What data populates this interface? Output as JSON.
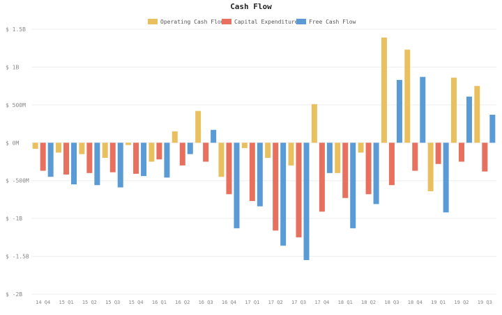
{
  "chart_data": {
    "type": "bar",
    "title": "Cash Flow",
    "xlabel": "",
    "ylabel": "",
    "ylim": [
      -2000,
      1500
    ],
    "y_ticks": [
      {
        "value": 1500,
        "label": "$ 1.5B"
      },
      {
        "value": 1000,
        "label": "$ 1B"
      },
      {
        "value": 500,
        "label": "$ 500M"
      },
      {
        "value": 0,
        "label": "$ 0M"
      },
      {
        "value": -500,
        "label": "$ -500M"
      },
      {
        "value": -1000,
        "label": "$ -1B"
      },
      {
        "value": -1500,
        "label": "$ -1.5B"
      },
      {
        "value": -2000,
        "label": "$ -2B"
      }
    ],
    "grid": true,
    "legend_position": "top-center",
    "categories": [
      "14 Q4",
      "15 Q1",
      "15 Q2",
      "15 Q3",
      "15 Q4",
      "16 Q1",
      "16 Q2",
      "16 Q3",
      "16 Q4",
      "17 Q1",
      "17 Q2",
      "17 Q3",
      "17 Q4",
      "18 Q1",
      "18 Q2",
      "18 Q3",
      "18 Q4",
      "19 Q1",
      "19 Q2",
      "19 Q3"
    ],
    "series": [
      {
        "name": "Operating Cash Flow",
        "color": "#e8c060",
        "values": [
          -80,
          -130,
          -150,
          -200,
          -30,
          -250,
          150,
          420,
          -450,
          -70,
          -200,
          -300,
          510,
          -400,
          -130,
          1390,
          1230,
          -640,
          860,
          750
        ]
      },
      {
        "name": "Capital Expenditures",
        "color": "#e8705f",
        "values": [
          -370,
          -420,
          -400,
          -390,
          -410,
          -220,
          -300,
          -250,
          -680,
          -770,
          -1160,
          -1250,
          -910,
          -730,
          -680,
          -560,
          -370,
          -280,
          -250,
          -380
        ]
      },
      {
        "name": "Free Cash Flow",
        "color": "#5b9bd5",
        "values": [
          -450,
          -550,
          -560,
          -590,
          -440,
          -460,
          -150,
          170,
          -1130,
          -840,
          -1360,
          -1550,
          -400,
          -1130,
          -810,
          830,
          870,
          -920,
          610,
          370
        ]
      }
    ]
  }
}
